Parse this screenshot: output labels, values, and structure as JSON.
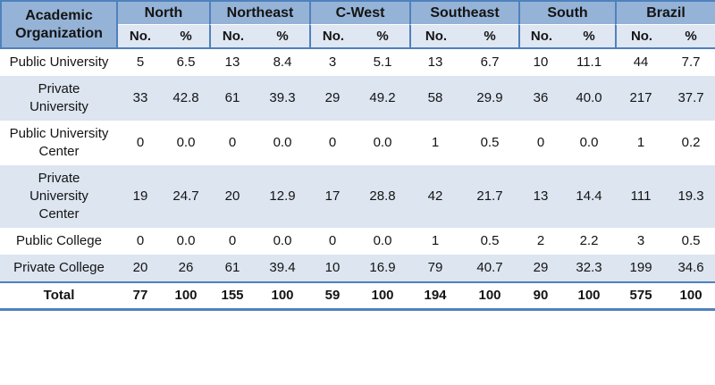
{
  "colors": {
    "border": "#4F81BD",
    "header_fill": "#95B3D7",
    "subheader_fill": "#DFE7F2",
    "band_fill": "#DCE5F0",
    "text": "#141414"
  },
  "table": {
    "corner_header": "Academic Organization",
    "groups": [
      "North",
      "Northeast",
      "C-West",
      "Southeast",
      "South",
      "Brazil"
    ],
    "subheader": {
      "count_label": "No.",
      "percent_label": "%"
    },
    "rows": [
      {
        "label": "Public University",
        "values": [
          "5",
          "6.5",
          "13",
          "8.4",
          "3",
          "5.1",
          "13",
          "6.7",
          "10",
          "11.1",
          "44",
          "7.7"
        ]
      },
      {
        "label": "Private University",
        "values": [
          "33",
          "42.8",
          "61",
          "39.3",
          "29",
          "49.2",
          "58",
          "29.9",
          "36",
          "40.0",
          "217",
          "37.7"
        ]
      },
      {
        "label": "Public University Center",
        "values": [
          "0",
          "0.0",
          "0",
          "0.0",
          "0",
          "0.0",
          "1",
          "0.5",
          "0",
          "0.0",
          "1",
          "0.2"
        ]
      },
      {
        "label": "Private University Center",
        "values": [
          "19",
          "24.7",
          "20",
          "12.9",
          "17",
          "28.8",
          "42",
          "21.7",
          "13",
          "14.4",
          "111",
          "19.3"
        ]
      },
      {
        "label": "Public College",
        "values": [
          "0",
          "0.0",
          "0",
          "0.0",
          "0",
          "0.0",
          "1",
          "0.5",
          "2",
          "2.2",
          "3",
          "0.5"
        ]
      },
      {
        "label": "Private College",
        "values": [
          "20",
          "26",
          "61",
          "39.4",
          "10",
          "16.9",
          "79",
          "40.7",
          "29",
          "32.3",
          "199",
          "34.6"
        ]
      }
    ],
    "total_row": {
      "label": "Total",
      "values": [
        "77",
        "100",
        "155",
        "100",
        "59",
        "100",
        "194",
        "100",
        "90",
        "100",
        "575",
        "100"
      ]
    }
  }
}
